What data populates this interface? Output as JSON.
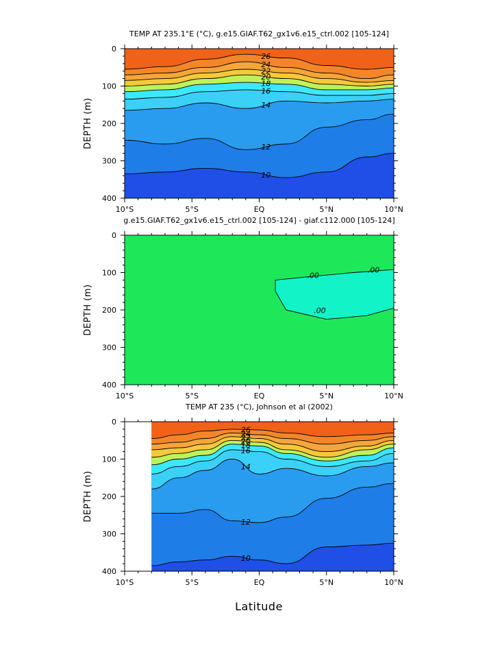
{
  "colors": {
    "level_fills": [
      "#1f4fe6",
      "#1f7de8",
      "#2a9cf0",
      "#23b4f8",
      "#3bd0f8",
      "#3ce8fc",
      "#bff25a",
      "#f2f03a",
      "#f6c83a",
      "#f4a63a",
      "#f4862a",
      "#f06218"
    ],
    "diff_green": "#1ee85a",
    "diff_cyan": "#12f4c8"
  },
  "x_axis_label": "Latitude",
  "chart_data": [
    {
      "type": "contour",
      "title": "TEMP AT 235.1°E (°C), g.e15.GIAF.T62_gx1v6.e15_ctrl.002 [105-124]",
      "ylabel": "DEPTH (m)",
      "xlim": [
        -10,
        10
      ],
      "ylim": [
        400,
        0
      ],
      "x_ticks": [
        "10°S",
        "5°S",
        "EQ",
        "5°N",
        "10°N"
      ],
      "y_ticks": [
        "0",
        "100",
        "200",
        "300",
        "400"
      ],
      "contour_labels": [
        "26",
        "24",
        "22",
        "20",
        "18",
        "16",
        "14",
        "12",
        "10"
      ],
      "isotherms": [
        {
          "level": 26,
          "x": [
            -10,
            -7,
            -4,
            -1,
            2,
            5,
            8,
            10
          ],
          "y": [
            55,
            48,
            28,
            15,
            25,
            45,
            55,
            50
          ]
        },
        {
          "level": 24,
          "x": [
            -10,
            -7,
            -4,
            -1,
            2,
            5,
            8,
            10
          ],
          "y": [
            70,
            65,
            50,
            35,
            50,
            65,
            80,
            70
          ]
        },
        {
          "level": 22,
          "x": [
            -10,
            -7,
            -4,
            -1,
            2,
            5,
            8,
            10
          ],
          "y": [
            85,
            80,
            65,
            55,
            65,
            80,
            90,
            85
          ]
        },
        {
          "level": 20,
          "x": [
            -10,
            -7,
            -4,
            -1,
            2,
            5,
            8,
            10
          ],
          "y": [
            100,
            95,
            80,
            70,
            80,
            95,
            100,
            95
          ]
        },
        {
          "level": 18,
          "x": [
            -10,
            -7,
            -4,
            -1,
            2,
            5,
            8,
            10
          ],
          "y": [
            115,
            110,
            95,
            90,
            95,
            110,
            110,
            105
          ]
        },
        {
          "level": 16,
          "x": [
            -10,
            -7,
            -4,
            -1,
            2,
            5,
            8,
            10
          ],
          "y": [
            135,
            130,
            115,
            110,
            115,
            125,
            125,
            120
          ]
        },
        {
          "level": 14,
          "x": [
            -10,
            -7,
            -4,
            -1,
            2,
            5,
            8,
            10
          ],
          "y": [
            165,
            160,
            145,
            160,
            140,
            145,
            140,
            135
          ]
        },
        {
          "level": 12,
          "x": [
            -10,
            -7,
            -4,
            -1,
            2,
            5,
            8,
            10
          ],
          "y": [
            245,
            255,
            240,
            270,
            255,
            210,
            190,
            175
          ]
        },
        {
          "level": 10,
          "x": [
            -10,
            -7,
            -4,
            -1,
            2,
            5,
            8,
            10
          ],
          "y": [
            335,
            330,
            320,
            330,
            345,
            330,
            290,
            280
          ]
        }
      ]
    },
    {
      "type": "contour",
      "title": "g.e15.GIAF.T62_gx1v6.e15_ctrl.002 [105-124] - giaf.c112.000 [105-124]",
      "ylabel": "DEPTH (m)",
      "xlim": [
        -10,
        10
      ],
      "ylim": [
        400,
        0
      ],
      "x_ticks": [
        "10°S",
        "5°S",
        "EQ",
        "5°N",
        "10°N"
      ],
      "y_ticks": [
        "0",
        "100",
        "200",
        "300",
        "400"
      ],
      "contour_labels": [
        ".00",
        ".00",
        ".00"
      ],
      "region": {
        "x": [
          1.2,
          4,
          7,
          10,
          10,
          8,
          5,
          2,
          1.2
        ],
        "y": [
          120,
          110,
          100,
          92,
          195,
          215,
          225,
          200,
          150
        ]
      }
    },
    {
      "type": "contour",
      "title": "TEMP AT 235 (°C), Johnson et al (2002)",
      "ylabel": "DEPTH (m)",
      "xlim": [
        -10,
        10
      ],
      "ylim": [
        400,
        0
      ],
      "data_xlim": [
        -8,
        10
      ],
      "x_ticks": [
        "10°S",
        "5°S",
        "EQ",
        "5°N",
        "10°N"
      ],
      "y_ticks": [
        "0",
        "100",
        "200",
        "300",
        "400"
      ],
      "contour_labels": [
        "26",
        "24",
        "22",
        "20",
        "18",
        "16",
        "14",
        "12",
        "10"
      ],
      "isotherms": [
        {
          "level": 26,
          "x": [
            -8,
            -6,
            -4,
            -2,
            0,
            2,
            5,
            8,
            10
          ],
          "y": [
            45,
            35,
            25,
            20,
            22,
            30,
            40,
            35,
            30
          ]
        },
        {
          "level": 24,
          "x": [
            -8,
            -6,
            -4,
            -2,
            0,
            2,
            5,
            8,
            10
          ],
          "y": [
            60,
            55,
            45,
            30,
            35,
            45,
            60,
            50,
            40
          ]
        },
        {
          "level": 22,
          "x": [
            -8,
            -6,
            -4,
            -2,
            0,
            2,
            5,
            8,
            10
          ],
          "y": [
            75,
            70,
            60,
            40,
            45,
            60,
            80,
            65,
            50
          ]
        },
        {
          "level": 20,
          "x": [
            -8,
            -6,
            -4,
            -2,
            0,
            2,
            5,
            8,
            10
          ],
          "y": [
            95,
            85,
            75,
            50,
            55,
            75,
            95,
            75,
            60
          ]
        },
        {
          "level": 18,
          "x": [
            -8,
            -6,
            -4,
            -2,
            0,
            2,
            5,
            8,
            10
          ],
          "y": [
            115,
            100,
            90,
            60,
            65,
            85,
            105,
            90,
            70
          ]
        },
        {
          "level": 16,
          "x": [
            -8,
            -6,
            -4,
            -2,
            0,
            2,
            5,
            8,
            10
          ],
          "y": [
            140,
            120,
            105,
            75,
            80,
            100,
            120,
            105,
            85
          ]
        },
        {
          "level": 14,
          "x": [
            -8,
            -6,
            -4,
            -2,
            0,
            2,
            5,
            8,
            10
          ],
          "y": [
            180,
            150,
            130,
            100,
            140,
            125,
            145,
            120,
            110
          ]
        },
        {
          "level": 12,
          "x": [
            -8,
            -6,
            -4,
            -2,
            0,
            2,
            5,
            8,
            10
          ],
          "y": [
            245,
            245,
            235,
            265,
            270,
            255,
            205,
            175,
            165
          ]
        },
        {
          "level": 10,
          "x": [
            -8,
            -6,
            -4,
            -2,
            0,
            2,
            5,
            8,
            10
          ],
          "y": [
            385,
            375,
            370,
            360,
            370,
            380,
            335,
            330,
            325
          ]
        }
      ]
    }
  ]
}
